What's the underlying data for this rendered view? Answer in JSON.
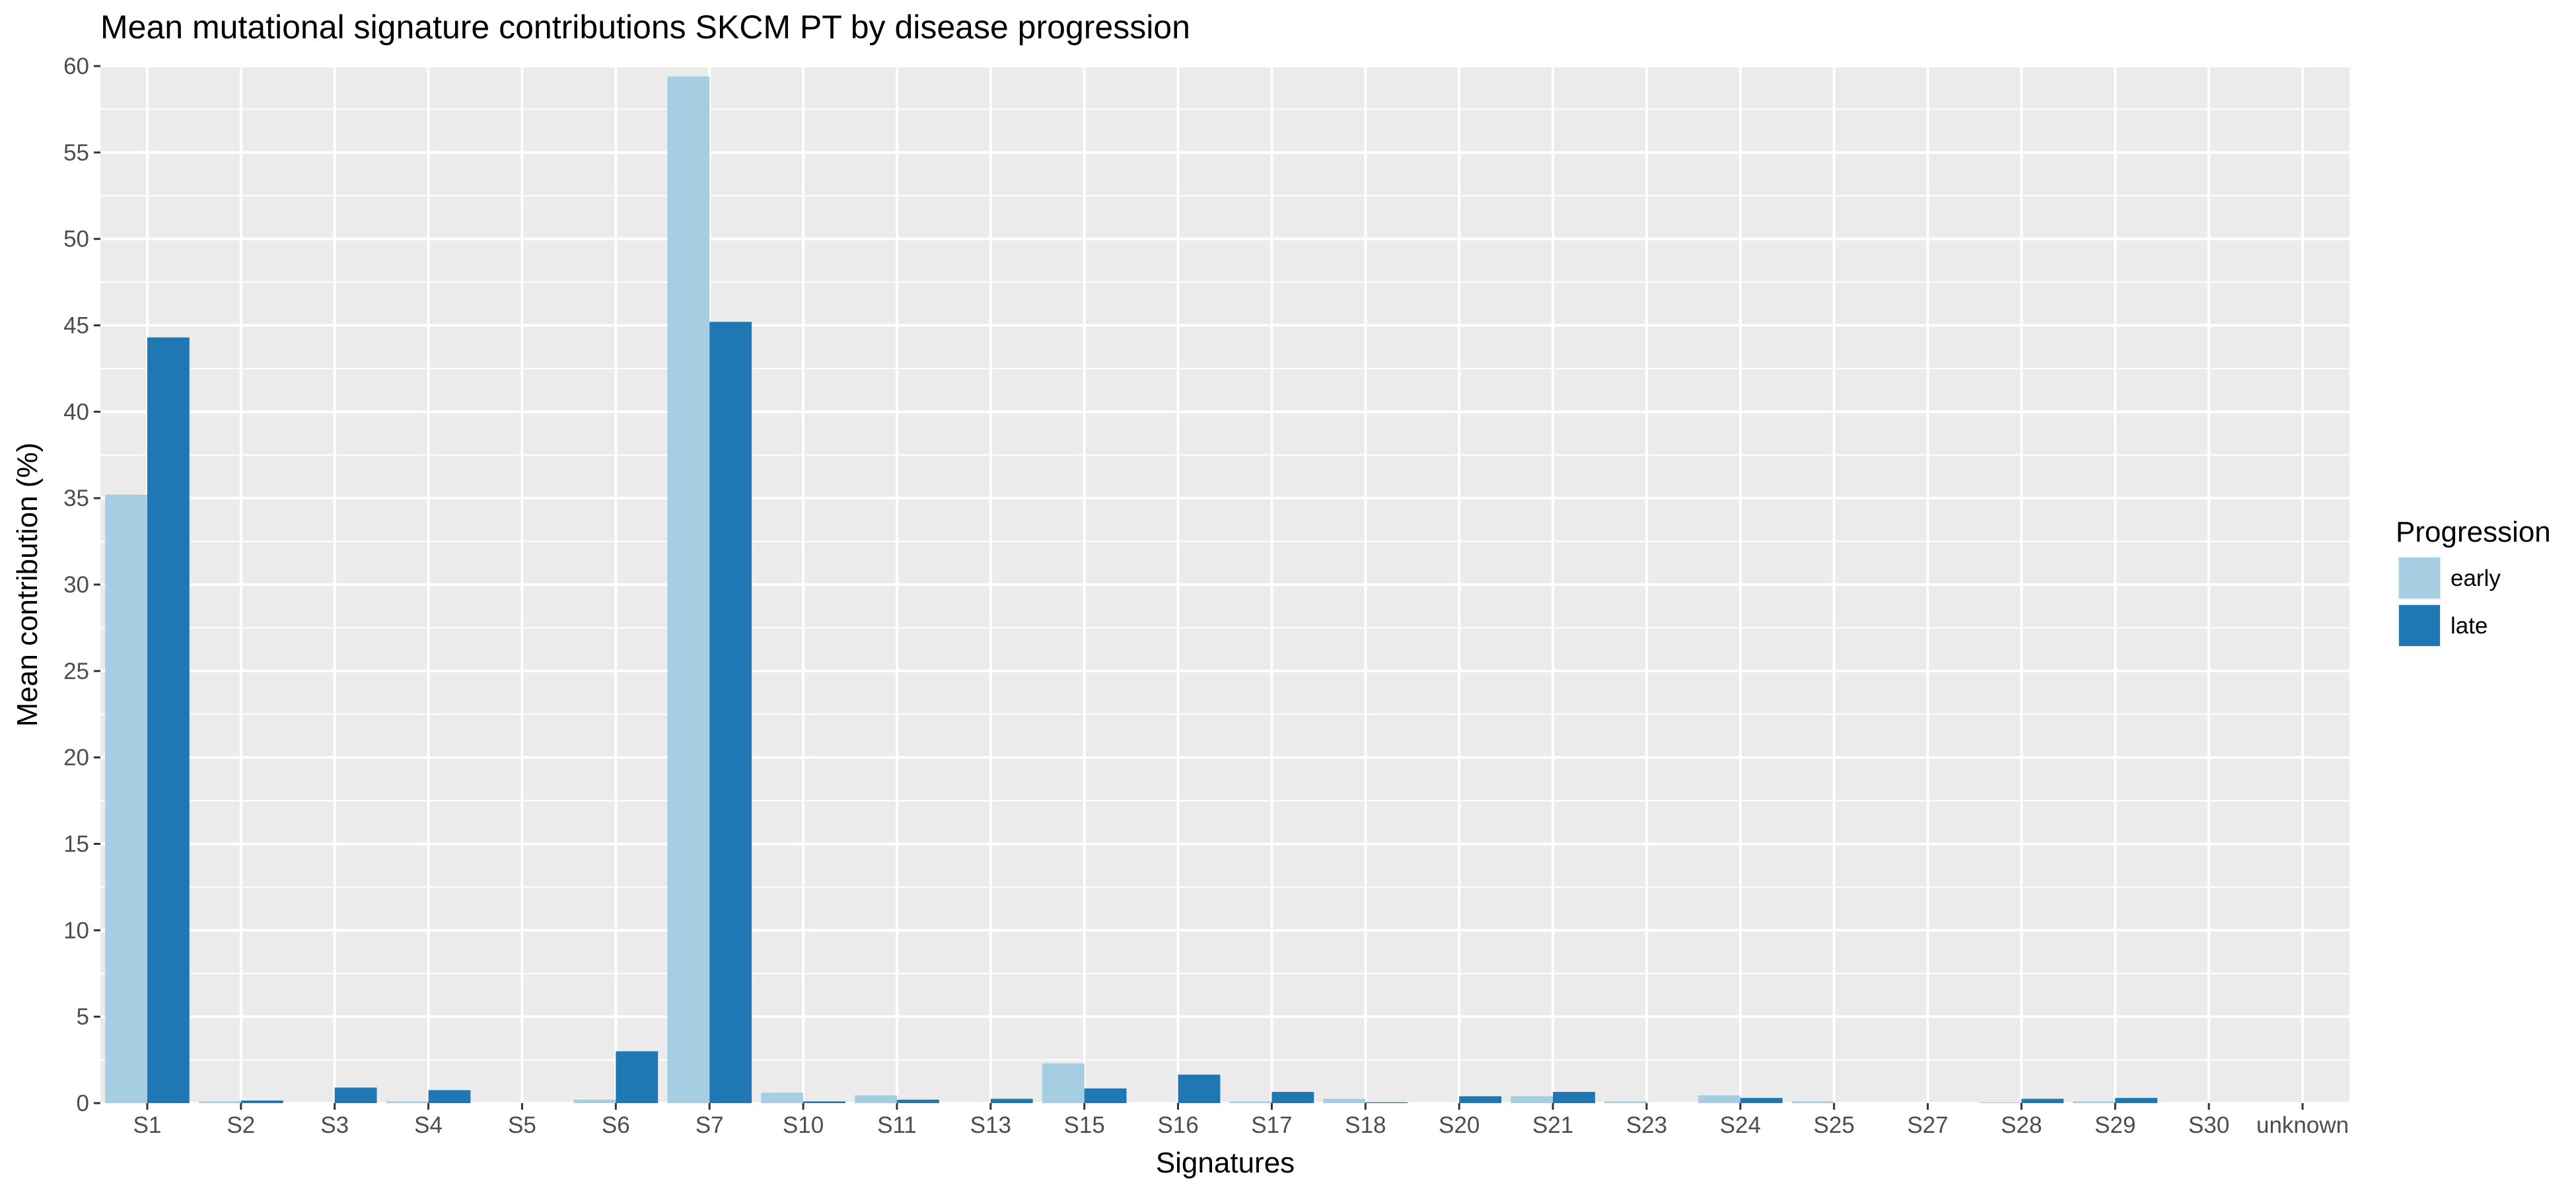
{
  "chart_data": {
    "type": "bar",
    "title": "Mean mutational signature contributions SKCM PT by disease progression",
    "xlabel": "Signatures",
    "ylabel": "Mean contribution (%)",
    "ylim": [
      0,
      60
    ],
    "yticks": [
      0,
      5,
      10,
      15,
      20,
      25,
      30,
      35,
      40,
      45,
      50,
      55,
      60
    ],
    "grid": true,
    "legend": {
      "title": "Progression",
      "position": "right"
    },
    "categories": [
      "S1",
      "S2",
      "S3",
      "S4",
      "S5",
      "S6",
      "S7",
      "S10",
      "S11",
      "S13",
      "S15",
      "S16",
      "S17",
      "S18",
      "S20",
      "S21",
      "S23",
      "S24",
      "S25",
      "S27",
      "S28",
      "S29",
      "S30",
      "unknown"
    ],
    "series": [
      {
        "name": "early",
        "color": "#a6cee3",
        "values": [
          35.2,
          0.1,
          0.0,
          0.1,
          0.0,
          0.2,
          59.4,
          0.6,
          0.45,
          0.0,
          2.3,
          0.0,
          0.1,
          0.25,
          0.0,
          0.4,
          0.1,
          0.45,
          0.1,
          0.0,
          0.05,
          0.1,
          0.0,
          0.0
        ]
      },
      {
        "name": "late",
        "color": "#1f78b4",
        "values": [
          44.3,
          0.15,
          0.9,
          0.75,
          0.0,
          3.0,
          45.2,
          0.1,
          0.2,
          0.25,
          0.85,
          1.65,
          0.65,
          0.05,
          0.4,
          0.65,
          0.0,
          0.3,
          0.0,
          0.0,
          0.25,
          0.3,
          0.0,
          0.0
        ]
      }
    ]
  },
  "colors": {
    "panel_background": "#ebebeb",
    "grid": "#ffffff",
    "tick_text": "#4d4d4d"
  }
}
